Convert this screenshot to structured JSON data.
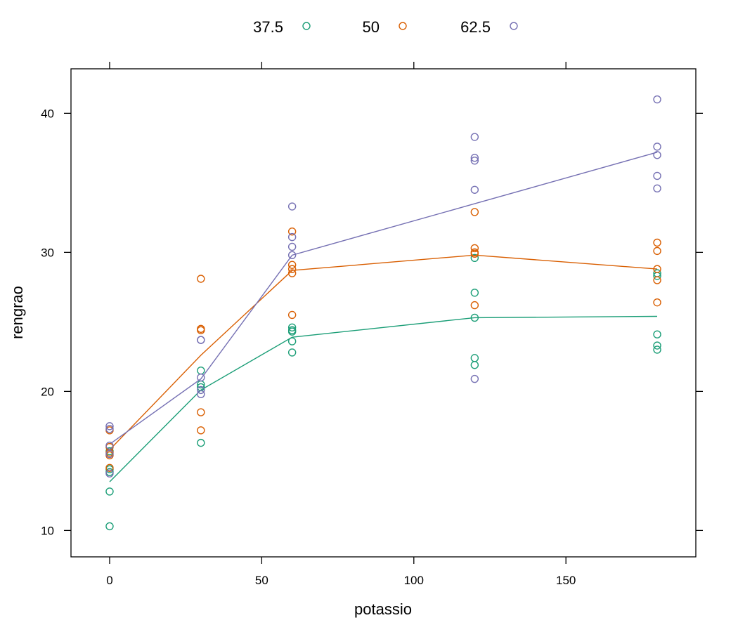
{
  "chart_data": {
    "type": "scatter",
    "title": "",
    "xlabel": "potassio",
    "ylabel": "rengrao",
    "xlim": [
      -12.7,
      192.7
    ],
    "ylim": [
      8.1,
      43.2
    ],
    "xticks": [
      0,
      50,
      100,
      150
    ],
    "yticks": [
      10,
      20,
      30,
      40
    ],
    "x_tick_labels": [
      "0",
      "50",
      "100",
      "150"
    ],
    "y_tick_labels": [
      "10",
      "20",
      "30",
      "40"
    ],
    "legend_position": "top",
    "grid": false,
    "series": [
      {
        "name": "37.5",
        "color": "#1b9e77",
        "points": [
          [
            0,
            10.3
          ],
          [
            0,
            12.8
          ],
          [
            0,
            14.2
          ],
          [
            0,
            14.4
          ],
          [
            0,
            15.7
          ],
          [
            30,
            16.3
          ],
          [
            30,
            20.3
          ],
          [
            30,
            20.5
          ],
          [
            30,
            21.5
          ],
          [
            60,
            22.8
          ],
          [
            60,
            23.6
          ],
          [
            60,
            24.3
          ],
          [
            60,
            24.4
          ],
          [
            60,
            24.6
          ],
          [
            120,
            21.9
          ],
          [
            120,
            22.4
          ],
          [
            120,
            25.3
          ],
          [
            120,
            27.1
          ],
          [
            120,
            29.6
          ],
          [
            180,
            23.0
          ],
          [
            180,
            23.3
          ],
          [
            180,
            24.1
          ],
          [
            180,
            28.3
          ],
          [
            180,
            28.5
          ]
        ],
        "trend_x": [
          0,
          30,
          60,
          120,
          180
        ],
        "trend_y": [
          13.5,
          20.1,
          23.9,
          25.3,
          25.4
        ]
      },
      {
        "name": "50",
        "color": "#d95f02",
        "points": [
          [
            0,
            14.5
          ],
          [
            0,
            15.4
          ],
          [
            0,
            15.6
          ],
          [
            0,
            16.0
          ],
          [
            0,
            17.2
          ],
          [
            30,
            17.2
          ],
          [
            30,
            18.5
          ],
          [
            30,
            24.4
          ],
          [
            30,
            24.5
          ],
          [
            30,
            28.1
          ],
          [
            60,
            25.5
          ],
          [
            60,
            28.5
          ],
          [
            60,
            28.8
          ],
          [
            60,
            29.1
          ],
          [
            60,
            31.5
          ],
          [
            120,
            26.2
          ],
          [
            120,
            29.9
          ],
          [
            120,
            30.0
          ],
          [
            120,
            30.3
          ],
          [
            120,
            32.9
          ],
          [
            180,
            26.4
          ],
          [
            180,
            28.0
          ],
          [
            180,
            28.8
          ],
          [
            180,
            30.1
          ],
          [
            180,
            30.7
          ]
        ],
        "trend_x": [
          0,
          30,
          60,
          120,
          180
        ],
        "trend_y": [
          15.8,
          22.6,
          28.7,
          29.8,
          28.8
        ]
      },
      {
        "name": "62.5",
        "color": "#7570b3",
        "points": [
          [
            0,
            14.1
          ],
          [
            0,
            15.5
          ],
          [
            0,
            16.1
          ],
          [
            0,
            17.3
          ],
          [
            0,
            17.5
          ],
          [
            30,
            19.8
          ],
          [
            30,
            20.1
          ],
          [
            30,
            21.0
          ],
          [
            30,
            23.7
          ],
          [
            30,
            23.7
          ],
          [
            60,
            29.8
          ],
          [
            60,
            30.4
          ],
          [
            60,
            31.1
          ],
          [
            60,
            33.3
          ],
          [
            120,
            20.9
          ],
          [
            120,
            34.5
          ],
          [
            120,
            36.6
          ],
          [
            120,
            36.8
          ],
          [
            120,
            38.3
          ],
          [
            180,
            34.6
          ],
          [
            180,
            35.5
          ],
          [
            180,
            37.0
          ],
          [
            180,
            37.6
          ],
          [
            180,
            41.0
          ]
        ],
        "trend_x": [
          0,
          30,
          60,
          120,
          180
        ],
        "trend_y": [
          16.2,
          20.9,
          29.8,
          33.5,
          37.2
        ]
      }
    ]
  }
}
